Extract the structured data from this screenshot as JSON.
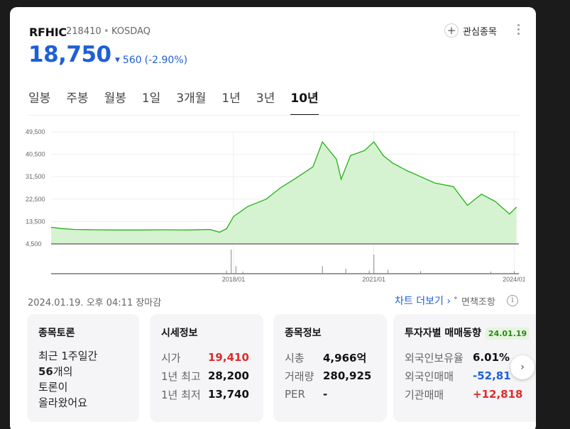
{
  "stock": {
    "name": "RFHIC",
    "code": "218410",
    "separator": "•",
    "market": "KOSDAQ",
    "price": "18,750",
    "change": "560",
    "change_pct": "(-2.90%)",
    "direction": "down"
  },
  "header": {
    "favorite_label": "관심종목"
  },
  "tabs": [
    {
      "label": "일봉",
      "active": false
    },
    {
      "label": "주봉",
      "active": false
    },
    {
      "label": "월봉",
      "active": false
    },
    {
      "label": "1일",
      "active": false
    },
    {
      "label": "3개월",
      "active": false
    },
    {
      "label": "1년",
      "active": false
    },
    {
      "label": "3년",
      "active": false
    },
    {
      "label": "10년",
      "active": true
    }
  ],
  "chart_data": {
    "type": "area",
    "y_ticks": [
      "49,500",
      "40,500",
      "31,500",
      "22,500",
      "13,500",
      "4,500"
    ],
    "ylim": [
      4500,
      49500
    ],
    "x_ticks": [
      "2018/01",
      "2021/01",
      "2024/01"
    ],
    "x_tick_positions": [
      2018.0,
      2021.0,
      2024.0
    ],
    "xlim": [
      2014.1,
      2024.1
    ],
    "x": [
      2014.1,
      2014.3,
      2014.6,
      2015.0,
      2015.5,
      2016.0,
      2016.5,
      2017.0,
      2017.5,
      2017.7,
      2017.85,
      2018.0,
      2018.3,
      2018.7,
      2019.0,
      2019.3,
      2019.7,
      2019.9,
      2020.2,
      2020.3,
      2020.5,
      2020.8,
      2021.0,
      2021.2,
      2021.4,
      2021.7,
      2022.0,
      2022.3,
      2022.7,
      2023.0,
      2023.3,
      2023.6,
      2023.9,
      2024.05
    ],
    "values": [
      11200,
      10700,
      10300,
      10200,
      10100,
      10100,
      10200,
      10100,
      10300,
      9200,
      10600,
      15500,
      19500,
      22500,
      27000,
      30500,
      35500,
      45500,
      38500,
      30500,
      40000,
      42000,
      45500,
      40000,
      37000,
      34000,
      31500,
      29000,
      27500,
      20000,
      24500,
      21500,
      16500,
      19300
    ],
    "volume": [
      {
        "x": 2017.85,
        "v": 0.12
      },
      {
        "x": 2017.95,
        "v": 0.95
      },
      {
        "x": 2018.05,
        "v": 0.3
      },
      {
        "x": 2018.2,
        "v": 0.08
      },
      {
        "x": 2019.9,
        "v": 0.3
      },
      {
        "x": 2020.4,
        "v": 0.2
      },
      {
        "x": 2020.9,
        "v": 0.12
      },
      {
        "x": 2021.0,
        "v": 0.75
      },
      {
        "x": 2021.3,
        "v": 0.15
      },
      {
        "x": 2022.0,
        "v": 0.1
      },
      {
        "x": 2023.5,
        "v": 0.08
      },
      {
        "x": 2024.0,
        "v": 0.1
      }
    ],
    "grid": true,
    "colors": {
      "line": "#22b014",
      "fill": "#d6f3d1",
      "grid": "#eeeeee",
      "volume": "#888888"
    }
  },
  "footer": {
    "datetime": "2024.01.19. 오후 04:11 장마감",
    "chart_more": "차트 더보기",
    "chart_more_caret": "›",
    "separator": "•",
    "disclaimer": "면책조항",
    "info_glyph": "i"
  },
  "discussion": {
    "title": "종목토론",
    "body_line1": "최근 1주일간",
    "body_line2_count": "56",
    "body_line2_rest": "개의",
    "body_line3": "토론이",
    "body_line4": "올라왔어요"
  },
  "market_info": {
    "title": "시세정보",
    "rows": [
      {
        "label": "시가",
        "value": "19,410",
        "color": "red"
      },
      {
        "label": "1년 최고",
        "value": "28,200",
        "color": ""
      },
      {
        "label": "1년 최저",
        "value": "13,740",
        "color": ""
      }
    ]
  },
  "stock_info": {
    "title": "종목정보",
    "rows": [
      {
        "label": "시총",
        "value": "4,966억"
      },
      {
        "label": "거래량",
        "value": "280,925"
      },
      {
        "label": "PER",
        "value": "-"
      }
    ]
  },
  "investor": {
    "title": "투자자별 매매동향",
    "badge": "24.01.19",
    "rows": [
      {
        "label": "외국인보유율",
        "value": "6.01%",
        "color": ""
      },
      {
        "label": "외국인매매",
        "value": "-52,81",
        "color": "blue"
      },
      {
        "label": "기관매매",
        "value": "+12,818",
        "color": "red"
      }
    ]
  },
  "next_glyph": "›"
}
